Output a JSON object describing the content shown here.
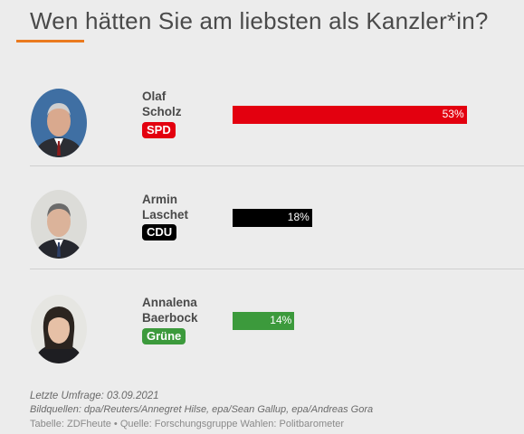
{
  "title": "Wen hätten Sie am liebsten als Kanzler*in?",
  "colors": {
    "accent": "#ea7a1f",
    "spd": "#e3000f",
    "cdu": "#000000",
    "gruene": "#3c9a3c"
  },
  "chart_data": {
    "type": "bar",
    "orientation": "horizontal",
    "title": "Wen hätten Sie am liebsten als Kanzler*in?",
    "unit": "%",
    "xlim": [
      0,
      100
    ],
    "categories": [
      "Olaf Scholz",
      "Armin Laschet",
      "Annalena Baerbock"
    ],
    "values": [
      53,
      18,
      14
    ],
    "value_labels": [
      "53%",
      "18%",
      "14%"
    ],
    "parties": [
      "SPD",
      "CDU",
      "Grüne"
    ],
    "bar_colors": [
      "#e3000f",
      "#000000",
      "#3c9a3c"
    ]
  },
  "candidates": [
    {
      "first": "Olaf",
      "last": "Scholz",
      "party": "SPD",
      "value": 53,
      "label": "53%",
      "color": "#e3000f",
      "avatar": "portrait-olaf-scholz"
    },
    {
      "first": "Armin",
      "last": "Laschet",
      "party": "CDU",
      "value": 18,
      "label": "18%",
      "color": "#000000",
      "avatar": "portrait-armin-laschet"
    },
    {
      "first": "Annalena",
      "last": "Baerbock",
      "party": "Grüne",
      "value": 14,
      "label": "14%",
      "color": "#3c9a3c",
      "avatar": "portrait-annalena-baerbock"
    }
  ],
  "footer": {
    "survey": "Letzte Umfrage: 03.09.2021",
    "image_credits": "Bildquellen: dpa/Reuters/Annegret Hilse, epa/Sean Gallup, epa/Andreas Gora",
    "source": "Tabelle: ZDFheute • Quelle: Forschungsgruppe Wahlen: Politbarometer"
  }
}
